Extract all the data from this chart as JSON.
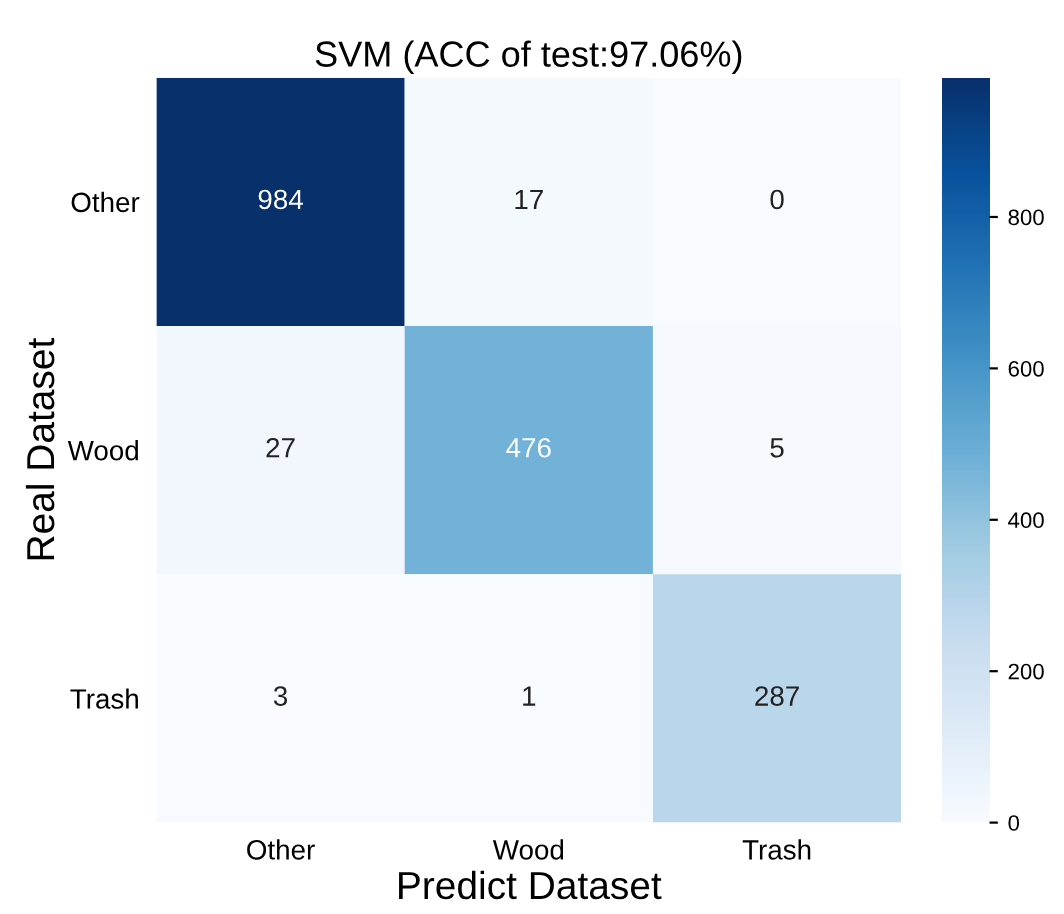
{
  "chart_data": {
    "type": "heatmap",
    "title": "SVM (ACC of test:97.06%)",
    "xlabel": "Predict Dataset",
    "ylabel": "Real Dataset",
    "categories": [
      "Other",
      "Wood",
      "Trash"
    ],
    "y_categories": [
      "Other",
      "Wood",
      "Trash"
    ],
    "cells": [
      [
        984,
        17,
        0
      ],
      [
        27,
        476,
        5
      ],
      [
        3,
        1,
        287
      ]
    ],
    "clim": [
      0,
      984
    ],
    "cticks": [
      0,
      200,
      400,
      600,
      800
    ],
    "data_labels": true
  }
}
